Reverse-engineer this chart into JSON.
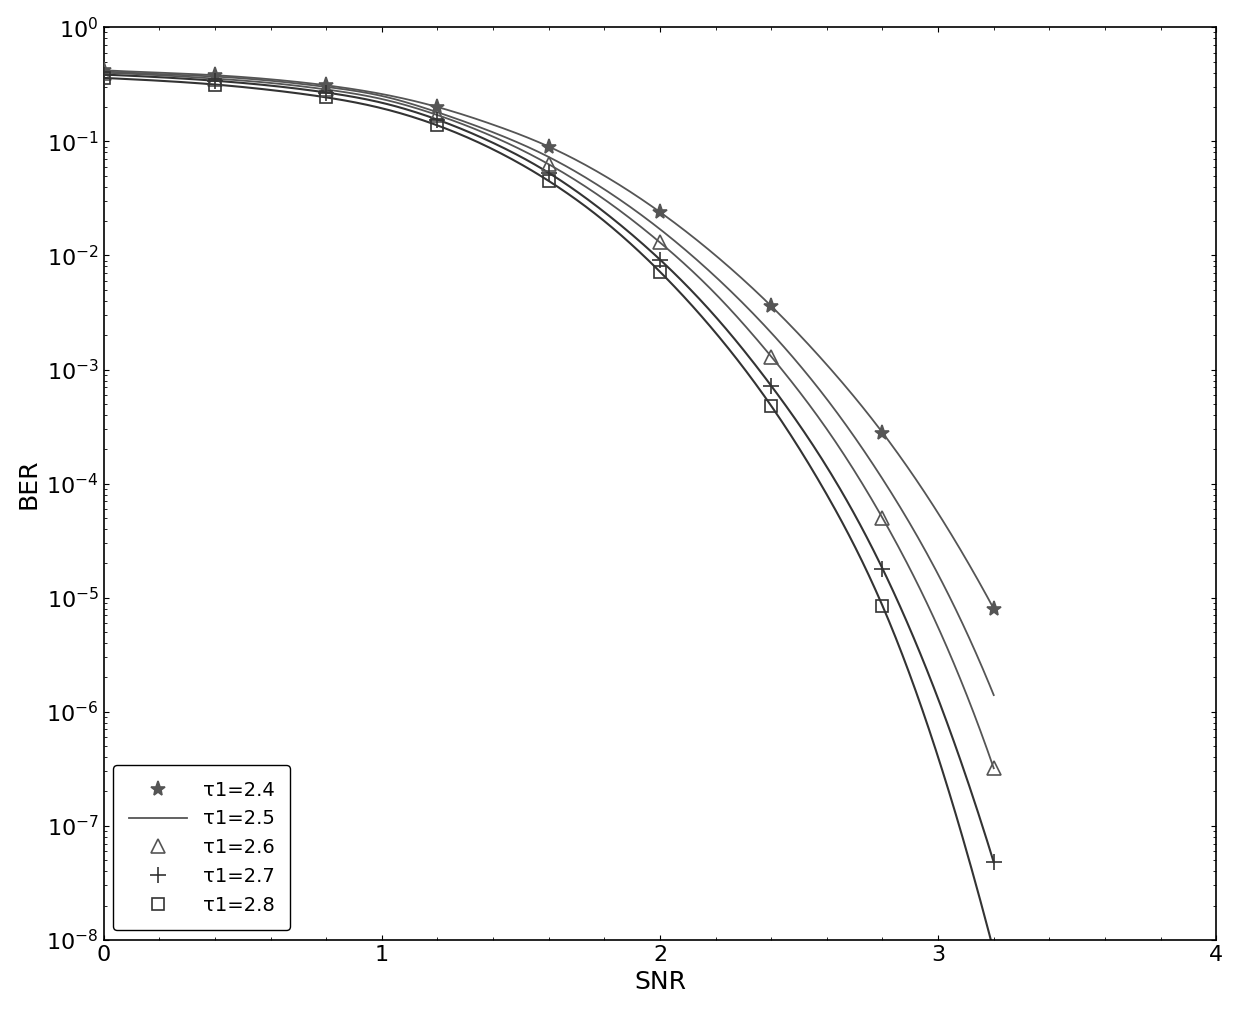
{
  "title": "",
  "xlabel": "SNR",
  "ylabel": "BER",
  "xlim": [
    0,
    4
  ],
  "ylim_log": [
    -8,
    0
  ],
  "background_color": "#ffffff",
  "series": [
    {
      "label": "τ1=2.4",
      "marker": "*",
      "color": "#555555",
      "linewidth": 1.3,
      "markersize": 11,
      "x": [
        0.0,
        0.2,
        0.4,
        0.6,
        0.8,
        1.0,
        1.2,
        1.4,
        1.6,
        1.8,
        2.0,
        2.2,
        2.4,
        2.6,
        2.8,
        3.0,
        3.2
      ],
      "y": [
        0.42,
        0.4,
        0.38,
        0.35,
        0.31,
        0.26,
        0.2,
        0.14,
        0.09,
        0.05,
        0.024,
        0.01,
        0.0036,
        0.0011,
        0.00028,
        5.5e-05,
        8e-06
      ]
    },
    {
      "label": "τ1=2.5",
      "marker": null,
      "color": "#555555",
      "linewidth": 1.3,
      "markersize": 0,
      "x": [
        0.0,
        0.2,
        0.4,
        0.6,
        0.8,
        1.0,
        1.2,
        1.4,
        1.6,
        1.8,
        2.0,
        2.2,
        2.4,
        2.6,
        2.8,
        3.0,
        3.2
      ],
      "y": [
        0.41,
        0.39,
        0.37,
        0.34,
        0.3,
        0.25,
        0.18,
        0.12,
        0.073,
        0.038,
        0.017,
        0.0065,
        0.0021,
        0.00055,
        0.00011,
        1.6e-05,
        1.4e-06
      ]
    },
    {
      "label": "τ1=2.6",
      "marker": "^",
      "color": "#555555",
      "linewidth": 1.3,
      "markersize": 10,
      "x": [
        0.0,
        0.2,
        0.4,
        0.6,
        0.8,
        1.0,
        1.2,
        1.4,
        1.6,
        1.8,
        2.0,
        2.2,
        2.4,
        2.6,
        2.8,
        3.0,
        3.2
      ],
      "y": [
        0.4,
        0.38,
        0.355,
        0.325,
        0.285,
        0.235,
        0.17,
        0.11,
        0.063,
        0.031,
        0.013,
        0.0046,
        0.0013,
        0.0003,
        5e-05,
        5.5e-06,
        3.2e-07
      ]
    },
    {
      "label": "τ1=2.7",
      "marker": "+",
      "color": "#333333",
      "linewidth": 1.5,
      "markersize": 11,
      "x": [
        0.0,
        0.2,
        0.4,
        0.6,
        0.8,
        1.0,
        1.2,
        1.4,
        1.6,
        1.8,
        2.0,
        2.2,
        2.4,
        2.6,
        2.8,
        3.0,
        3.2
      ],
      "y": [
        0.385,
        0.365,
        0.34,
        0.308,
        0.268,
        0.218,
        0.155,
        0.097,
        0.053,
        0.024,
        0.0092,
        0.0029,
        0.00072,
        0.00014,
        1.8e-05,
        1.3e-06,
        4.8e-08
      ]
    },
    {
      "label": "τ1=2.8",
      "marker": "s",
      "color": "#333333",
      "linewidth": 1.5,
      "markersize": 8,
      "x": [
        0.0,
        0.2,
        0.4,
        0.6,
        0.8,
        1.0,
        1.2,
        1.4,
        1.6,
        1.8,
        2.0,
        2.2,
        2.4,
        2.6,
        2.8,
        3.0,
        3.2
      ],
      "y": [
        0.36,
        0.34,
        0.315,
        0.282,
        0.243,
        0.195,
        0.138,
        0.085,
        0.045,
        0.02,
        0.0072,
        0.0021,
        0.00048,
        8e-05,
        8.5e-06,
        4e-07,
        8e-09
      ]
    }
  ],
  "legend_loc": "lower left",
  "tick_fontsize": 16,
  "label_fontsize": 18,
  "marker_every": 2,
  "figsize": [
    12.4,
    10.11
  ],
  "dpi": 100
}
